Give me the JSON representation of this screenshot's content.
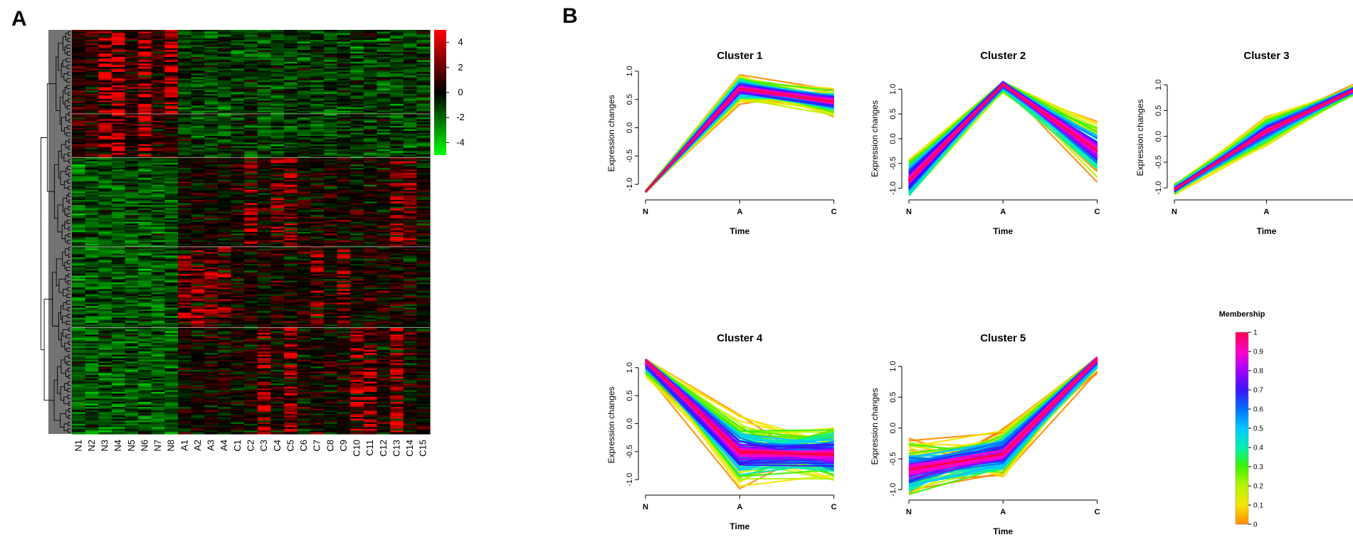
{
  "panels": {
    "a_label": "A",
    "b_label": "B"
  },
  "chart_data": [
    {
      "type": "heatmap",
      "title": "",
      "columns": [
        "N1",
        "N2",
        "N3",
        "N4",
        "N5",
        "N6",
        "N7",
        "N8",
        "A1",
        "A2",
        "A3",
        "A4",
        "C1",
        "C2",
        "C3",
        "C4",
        "C5",
        "C6",
        "C7",
        "C8",
        "C9",
        "C10",
        "C11",
        "C12",
        "C13",
        "C14",
        "C15"
      ],
      "row_count": 240,
      "row_blocks": 5,
      "block_rows": [
        50,
        26,
        53,
        48,
        63
      ],
      "block_hotspots": [
        {
          "block": 1,
          "columns": [
            "N3",
            "N4",
            "N6",
            "N8"
          ],
          "intensity": 4.5
        },
        {
          "block": 2,
          "columns": [
            "N3",
            "N4",
            "N6"
          ],
          "intensity": 4.0
        },
        {
          "block": 3,
          "columns": [
            "C2",
            "C4",
            "C5",
            "C13",
            "C14"
          ],
          "intensity": 3.5
        },
        {
          "block": 4,
          "columns": [
            "A1",
            "A2",
            "A3",
            "A4",
            "C7",
            "C9"
          ],
          "intensity": 3.5
        },
        {
          "block": 5,
          "columns": [
            "C3",
            "C5",
            "C10",
            "C11",
            "C13"
          ],
          "intensity": 4.0
        }
      ],
      "colorbar": {
        "ticks": [
          4,
          2,
          0,
          -2,
          -4
        ],
        "range": [
          -5,
          5
        ],
        "low_color": "#00ff00",
        "mid_color": "#000000",
        "high_color": "#ff0000"
      },
      "dendrogram": "rows"
    },
    {
      "type": "line",
      "panel": "B",
      "xlabel": "Time",
      "ylabel": "Expression changes",
      "x": [
        "N",
        "A",
        "C"
      ],
      "ytick_values": [
        -1.0,
        -0.5,
        0.0,
        0.5,
        1.0
      ],
      "ytick_labels": [
        "-1.0",
        "-0.5",
        "0.0",
        "0.5",
        "1.0"
      ],
      "clusters": [
        {
          "title": "Cluster 1",
          "center": [
            -1.13,
            0.69,
            0.46
          ],
          "ylim": [
            -1.2,
            1.0
          ],
          "spread": [
            0.02,
            0.28,
            0.3
          ]
        },
        {
          "title": "Cluster 2",
          "center": [
            -0.85,
            1.1,
            -0.25
          ],
          "ylim": [
            -1.15,
            1.15
          ],
          "spread": [
            0.55,
            0.2,
            0.65
          ]
        },
        {
          "title": "Cluster 3",
          "center": [
            -1.03,
            0.1,
            0.94
          ],
          "ylim": [
            -1.15,
            1.1
          ],
          "spread": [
            0.12,
            0.3,
            0.12
          ]
        },
        {
          "title": "Cluster 4",
          "center": [
            1.13,
            -0.5,
            -0.55
          ],
          "ylim": [
            -1.2,
            1.15
          ],
          "spread": [
            0.35,
            0.7,
            0.65
          ]
        },
        {
          "title": "Cluster 5",
          "center": [
            -0.68,
            -0.42,
            1.12
          ],
          "ylim": [
            -1.1,
            1.15
          ],
          "spread": [
            0.6,
            0.45,
            0.25
          ]
        }
      ],
      "membership_legend": {
        "title": "Membership",
        "ticks": [
          "1",
          "0.9",
          "0.8",
          "0.7",
          "0.6",
          "0.5",
          "0.4",
          "0.3",
          "0.2",
          "0.1",
          "0"
        ],
        "colors": [
          "#ff8a00",
          "#f6e400",
          "#b7f500",
          "#3ef200",
          "#00f0b0",
          "#00c8ff",
          "#0070ff",
          "#3c14ff",
          "#a000ff",
          "#ff00c8",
          "#ff0050"
        ]
      }
    }
  ]
}
